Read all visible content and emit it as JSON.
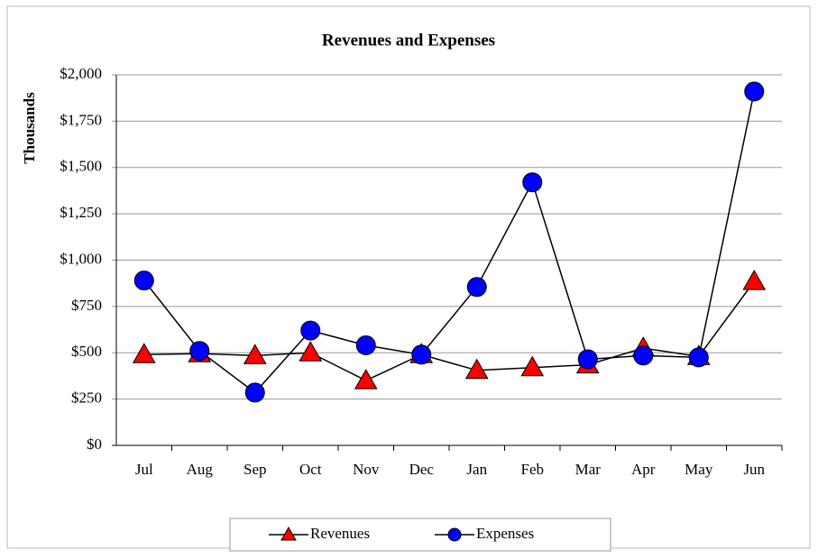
{
  "chart_data": {
    "type": "line",
    "title": "Revenues and Expenses",
    "y_label": "Thousands",
    "categories": [
      "Jul",
      "Aug",
      "Sep",
      "Oct",
      "Nov",
      "Dec",
      "Jan",
      "Feb",
      "Mar",
      "Apr",
      "May",
      "Jun"
    ],
    "series": [
      {
        "name": "Revenues",
        "color": "#ff0000",
        "marker": "triangle",
        "values": [
          490,
          495,
          485,
          500,
          350,
          490,
          405,
          420,
          435,
          525,
          480,
          885
        ]
      },
      {
        "name": "Expenses",
        "color": "#0000ff",
        "marker": "circle",
        "values": [
          890,
          510,
          285,
          620,
          540,
          490,
          855,
          1420,
          465,
          485,
          475,
          1910
        ]
      }
    ],
    "ylim": [
      0,
      2000
    ],
    "yticks": [
      {
        "value": 0,
        "label": "$0"
      },
      {
        "value": 250,
        "label": "$250"
      },
      {
        "value": 500,
        "label": "$500"
      },
      {
        "value": 750,
        "label": "$750"
      },
      {
        "value": 1000,
        "label": "$1,000"
      },
      {
        "value": 1250,
        "label": "$1,250"
      },
      {
        "value": 1500,
        "label": "$1,500"
      },
      {
        "value": 1750,
        "label": "$1,750"
      },
      {
        "value": 2000,
        "label": "$2,000"
      }
    ],
    "grid": true,
    "legend": "bottom"
  }
}
